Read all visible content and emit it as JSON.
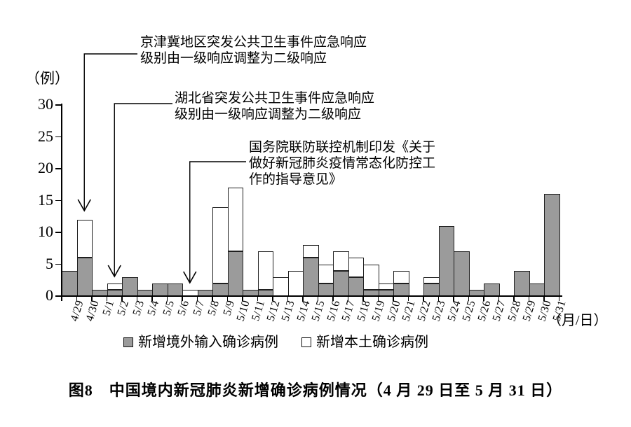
{
  "figure": {
    "caption": "图8　中国境内新冠肺炎新增确诊病例情况（4 月 29 日至 5 月 31 日）"
  },
  "chart_data": {
    "type": "bar",
    "stacked": true,
    "title": "图8　中国境内新冠肺炎新增确诊病例情况（4 月 29 日至 5 月 31 日）",
    "ylabel": "（例）",
    "xlabel": "（月/日）",
    "ylim": [
      0,
      30
    ],
    "yticks": [
      0,
      5,
      10,
      15,
      20,
      25,
      30
    ],
    "grid": false,
    "legend_position": "bottom",
    "categories": [
      "4/29",
      "4/30",
      "5/1",
      "5/2",
      "5/3",
      "5/4",
      "5/5",
      "5/6",
      "5/7",
      "5/8",
      "5/9",
      "5/10",
      "5/11",
      "5/12",
      "5/13",
      "5/14",
      "5/15",
      "5/16",
      "5/17",
      "5/18",
      "5/19",
      "5/20",
      "5/21",
      "5/22",
      "5/23",
      "5/24",
      "5/25",
      "5/26",
      "5/27",
      "5/28",
      "5/29",
      "5/30",
      "5/31"
    ],
    "series": [
      {
        "name": "新增境外输入确诊病例",
        "color": "#9b9b9b",
        "values": [
          4,
          6,
          1,
          1,
          3,
          1,
          2,
          2,
          0,
          1,
          2,
          7,
          1,
          1,
          0,
          0,
          6,
          2,
          4,
          3,
          1,
          1,
          2,
          0,
          2,
          11,
          7,
          1,
          2,
          0,
          4,
          2,
          16
        ]
      },
      {
        "name": "新增本土确诊病例",
        "color": "#ffffff",
        "values": [
          0,
          6,
          0,
          1,
          0,
          0,
          0,
          0,
          1,
          0,
          12,
          10,
          0,
          6,
          3,
          4,
          2,
          3,
          3,
          3,
          4,
          1,
          2,
          0,
          1,
          0,
          0,
          0,
          0,
          0,
          0,
          0,
          0
        ]
      }
    ],
    "annotations": [
      {
        "lines": [
          "京津冀地区突发公共卫生事件应急响应",
          "级别由一级响应调整为二级响应"
        ],
        "target_date": "4/30"
      },
      {
        "lines": [
          "湖北省突发公共卫生事件应急响应",
          "级别由一级响应调整为二级响应"
        ],
        "target_date": "5/2"
      },
      {
        "lines": [
          "国务院联防联控机制印发《关于",
          "做好新冠肺炎疫情常态化防控工",
          "作的指导意见》"
        ],
        "target_date": "5/7"
      }
    ]
  }
}
